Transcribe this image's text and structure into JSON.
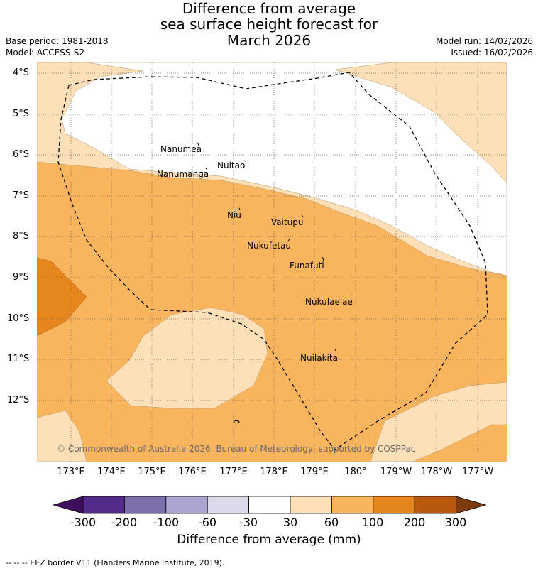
{
  "title": {
    "line1": "Difference from average",
    "line2": "sea surface height forecast for",
    "line3": "March 2026"
  },
  "meta": {
    "base_period": "Base period: 1981-2018",
    "model": "Model: ACCESS-S2",
    "model_run": "Model run: 14/02/2026",
    "issued": "Issued: 16/02/2026"
  },
  "map": {
    "y_ticks": [
      "4°S",
      "5°S",
      "6°S",
      "7°S",
      "8°S",
      "9°S",
      "10°S",
      "11°S",
      "12°S"
    ],
    "x_ticks": [
      "173°E",
      "174°E",
      "175°E",
      "176°E",
      "177°E",
      "178°E",
      "179°E",
      "180°",
      "179°W",
      "178°W",
      "177°W"
    ],
    "islands": [
      "Nanumea",
      "Nuitao",
      "Nanumanga",
      "Niu",
      "Vaitupu",
      "Nukufetau",
      "Funafuti",
      "Nukulaelae",
      "Nuilakita"
    ],
    "copyright": "© Commonwealth of Australia 2026, Bureau of Meteorology, supported by COSPPac"
  },
  "colorbar": {
    "ticks": [
      "-300",
      "-200",
      "-100",
      "-60",
      "-30",
      "30",
      "60",
      "100",
      "200",
      "300"
    ],
    "colors": [
      "#3f0f5e",
      "#542a8a",
      "#7d6fab",
      "#aca5cf",
      "#dcdaea",
      "#ffffff",
      "#fde0b7",
      "#f9b55d",
      "#e7861d",
      "#b8590f",
      "#7b3b0a"
    ],
    "title": "Difference from average (mm)"
  },
  "footer": "-- -- -- EEZ border V11 (Flanders Marine Institute, 2019)."
}
